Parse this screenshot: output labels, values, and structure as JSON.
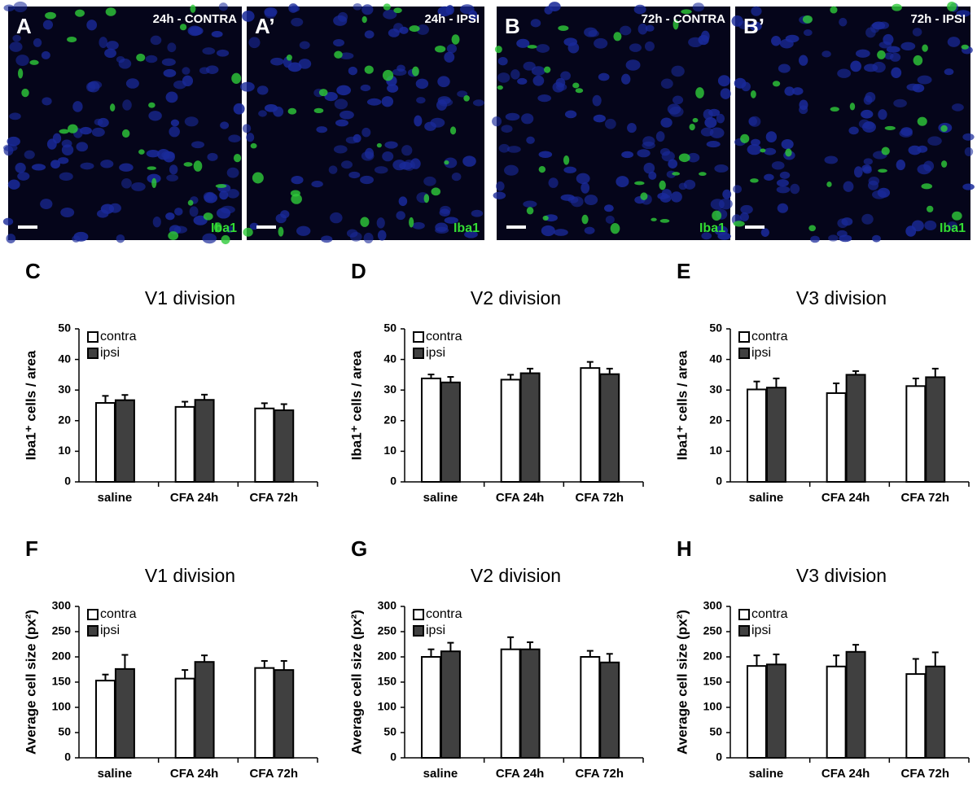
{
  "images": [
    {
      "label": "A",
      "condition": "24h - CONTRA",
      "marker": "Iba1"
    },
    {
      "label": "A’",
      "condition": "24h - IPSI",
      "marker": "Iba1"
    },
    {
      "label": "B",
      "condition": "72h - CONTRA",
      "marker": "Iba1"
    },
    {
      "label": "B’",
      "condition": "72h - IPSI",
      "marker": "Iba1"
    }
  ],
  "chart_data": [
    {
      "type": "bar",
      "panel": "C",
      "title": "V1 division",
      "ylabel": "Iba1⁺ cells / area",
      "categories": [
        "saline",
        "CFA 24h",
        "CFA 72h"
      ],
      "series": [
        {
          "name": "contra",
          "color": "#ffffff",
          "values": [
            25.8,
            24.5,
            24.0
          ],
          "errors": [
            2.3,
            1.7,
            1.7
          ]
        },
        {
          "name": "ipsi",
          "color": "#404040",
          "values": [
            26.7,
            26.8,
            23.4
          ],
          "errors": [
            1.7,
            1.7,
            2.0
          ]
        }
      ],
      "ylim": [
        0,
        50
      ],
      "yticks": [
        0,
        10,
        20,
        30,
        40,
        50
      ]
    },
    {
      "type": "bar",
      "panel": "D",
      "title": "V2 division",
      "ylabel": "Iba1⁺ cells / area",
      "categories": [
        "saline",
        "CFA 24h",
        "CFA 72h"
      ],
      "series": [
        {
          "name": "contra",
          "color": "#ffffff",
          "values": [
            33.8,
            33.4,
            37.2
          ],
          "errors": [
            1.3,
            1.6,
            2.0
          ]
        },
        {
          "name": "ipsi",
          "color": "#404040",
          "values": [
            32.5,
            35.5,
            35.2
          ],
          "errors": [
            1.8,
            1.5,
            1.8
          ]
        }
      ],
      "ylim": [
        0,
        50
      ],
      "yticks": [
        0,
        10,
        20,
        30,
        40,
        50
      ]
    },
    {
      "type": "bar",
      "panel": "E",
      "title": "V3 division",
      "ylabel": "Iba1⁺ cells / area",
      "categories": [
        "saline",
        "CFA 24h",
        "CFA 72h"
      ],
      "series": [
        {
          "name": "contra",
          "color": "#ffffff",
          "values": [
            30.2,
            29.0,
            31.3
          ],
          "errors": [
            2.6,
            3.2,
            2.5
          ]
        },
        {
          "name": "ipsi",
          "color": "#404040",
          "values": [
            30.8,
            35.0,
            34.2
          ],
          "errors": [
            3.0,
            1.2,
            2.8
          ]
        }
      ],
      "ylim": [
        0,
        50
      ],
      "yticks": [
        0,
        10,
        20,
        30,
        40,
        50
      ]
    },
    {
      "type": "bar",
      "panel": "F",
      "title": "V1 division",
      "ylabel": "Average cell size (px²)",
      "categories": [
        "saline",
        "CFA 24h",
        "CFA 72h"
      ],
      "series": [
        {
          "name": "contra",
          "color": "#ffffff",
          "values": [
            153,
            157,
            178
          ],
          "errors": [
            12,
            17,
            14
          ]
        },
        {
          "name": "ipsi",
          "color": "#404040",
          "values": [
            176,
            190,
            174
          ],
          "errors": [
            28,
            13,
            18
          ]
        }
      ],
      "ylim": [
        0,
        300
      ],
      "yticks": [
        0,
        50,
        100,
        150,
        200,
        250,
        300
      ]
    },
    {
      "type": "bar",
      "panel": "G",
      "title": "V2 division",
      "ylabel": "Average cell size (px²)",
      "categories": [
        "saline",
        "CFA 24h",
        "CFA 72h"
      ],
      "series": [
        {
          "name": "contra",
          "color": "#ffffff",
          "values": [
            200,
            215,
            200
          ],
          "errors": [
            15,
            24,
            12
          ]
        },
        {
          "name": "ipsi",
          "color": "#404040",
          "values": [
            211,
            215,
            189
          ],
          "errors": [
            17,
            14,
            17
          ]
        }
      ],
      "ylim": [
        0,
        300
      ],
      "yticks": [
        0,
        50,
        100,
        150,
        200,
        250,
        300
      ]
    },
    {
      "type": "bar",
      "panel": "H",
      "title": "V3 division",
      "ylabel": "Average cell size (px²)",
      "categories": [
        "saline",
        "CFA 24h",
        "CFA 72h"
      ],
      "series": [
        {
          "name": "contra",
          "color": "#ffffff",
          "values": [
            182,
            181,
            166
          ],
          "errors": [
            21,
            22,
            30
          ]
        },
        {
          "name": "ipsi",
          "color": "#404040",
          "values": [
            185,
            210,
            181
          ],
          "errors": [
            20,
            14,
            28
          ]
        }
      ],
      "ylim": [
        0,
        300
      ],
      "yticks": [
        0,
        50,
        100,
        150,
        200,
        250,
        300
      ]
    }
  ]
}
